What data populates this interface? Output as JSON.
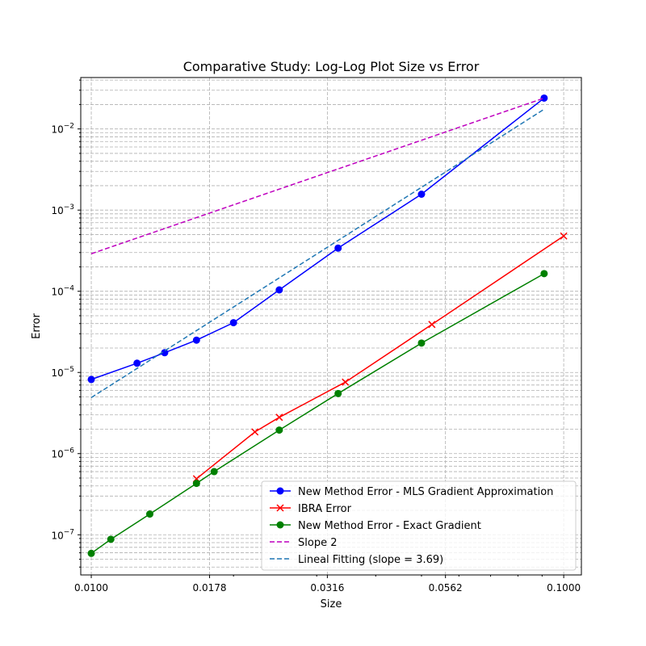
{
  "chart_data": {
    "type": "line",
    "title": "Comparative Study: Log-Log Plot Size vs Error",
    "xlabel": "Size",
    "ylabel": "Error",
    "xscale": "log",
    "yscale": "log",
    "xlim": [
      0.0095,
      0.109
    ],
    "ylim": [
      3.2e-08,
      0.043
    ],
    "xticks": [
      0.01,
      0.0178,
      0.0316,
      0.0562,
      0.1
    ],
    "xtick_labels": [
      "0.0100",
      "0.0178",
      "0.0316",
      "0.0562",
      "0.1000"
    ],
    "yticks": [
      1e-07,
      1e-06,
      1e-05,
      0.0001,
      0.001,
      0.01
    ],
    "ytick_labels": [
      {
        "base": "10",
        "exp": "−7"
      },
      {
        "base": "10",
        "exp": "−6"
      },
      {
        "base": "10",
        "exp": "−5"
      },
      {
        "base": "10",
        "exp": "−4"
      },
      {
        "base": "10",
        "exp": "−3"
      },
      {
        "base": "10",
        "exp": "−2"
      }
    ],
    "grid": "both (major and minor, dashed)",
    "legend_position": "lower right",
    "series": [
      {
        "name": "New Method Error - MLS Gradient Approximation",
        "color": "#0000ff",
        "linestyle": "solid",
        "marker": "circle",
        "x": [
          0.01,
          0.0125,
          0.0143,
          0.0167,
          0.02,
          0.025,
          0.0333,
          0.05,
          0.0909
        ],
        "y": [
          8.2e-06,
          1.3e-05,
          1.75e-05,
          2.5e-05,
          4.1e-05,
          0.000104,
          0.00034,
          0.00157,
          0.024
        ]
      },
      {
        "name": "IBRA Error",
        "color": "#ff0000",
        "linestyle": "solid",
        "marker": "x",
        "x": [
          0.0167,
          0.0222,
          0.025,
          0.0345,
          0.0526,
          0.1
        ],
        "y": [
          4.9e-07,
          1.85e-06,
          2.8e-06,
          7.6e-06,
          3.9e-05,
          0.00048
        ]
      },
      {
        "name": "New Method Error - Exact Gradient",
        "color": "#008000",
        "linestyle": "solid",
        "marker": "circle",
        "x": [
          0.01,
          0.011,
          0.0133,
          0.0167,
          0.0182,
          0.025,
          0.0333,
          0.05,
          0.0909
        ],
        "y": [
          5.9e-08,
          8.8e-08,
          1.8e-07,
          4.3e-07,
          6e-07,
          1.95e-06,
          5.5e-06,
          2.3e-05,
          0.000165
        ]
      },
      {
        "name": "Slope 2",
        "color": "#bf00bf",
        "linestyle": "dashed",
        "marker": "none",
        "x": [
          0.01,
          0.0909
        ],
        "y": [
          0.00029,
          0.024
        ]
      },
      {
        "name": "Lineal Fitting (slope = 3.69)",
        "color": "#1f77b4",
        "linestyle": "dashed",
        "marker": "none",
        "x": [
          0.01,
          0.0909
        ],
        "y": [
          4.9e-06,
          0.0175
        ]
      }
    ]
  }
}
